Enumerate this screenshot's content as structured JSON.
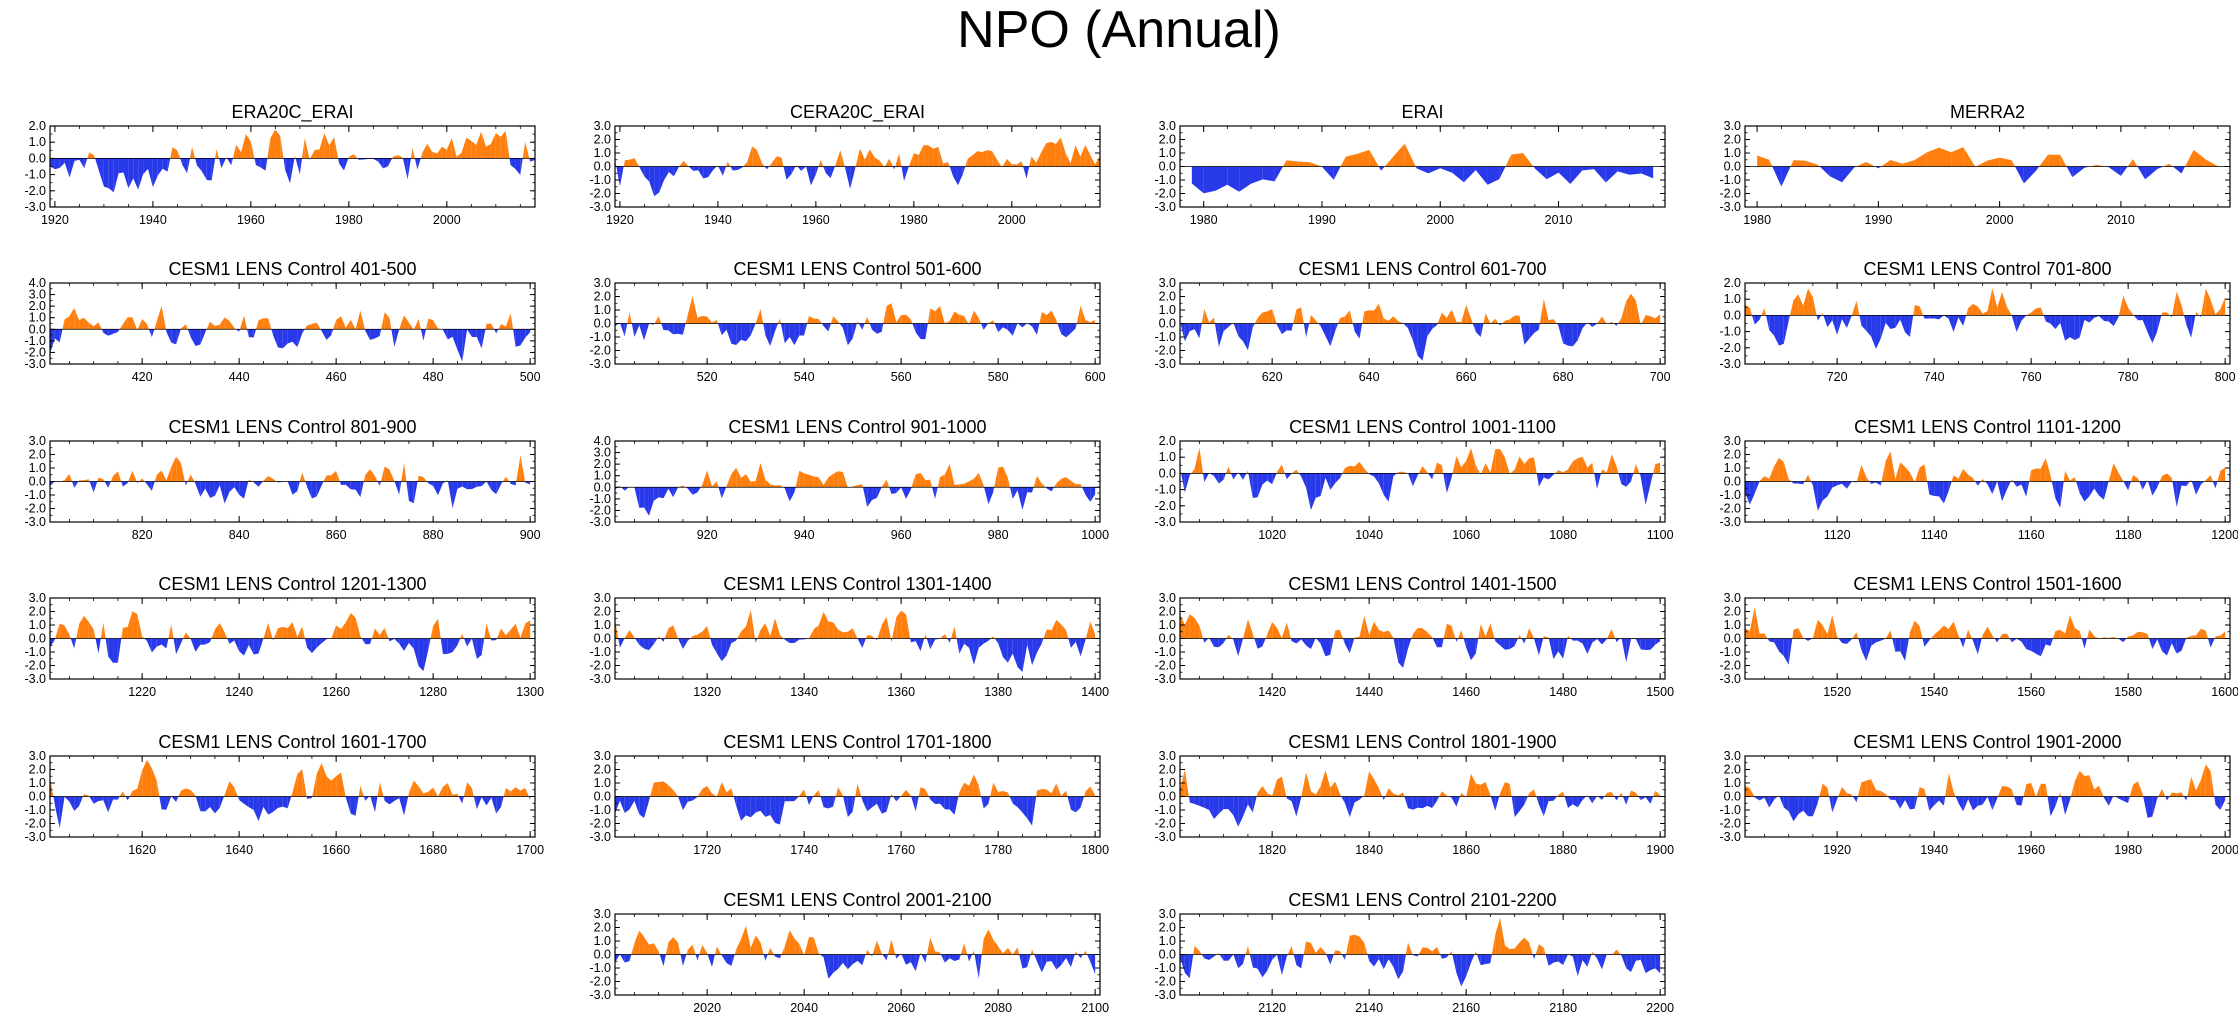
{
  "figure": {
    "title": "NPO (Annual)",
    "colors": {
      "positive": "#ff7f0e",
      "negative": "#2839ea",
      "axis": "#000000"
    }
  },
  "chart_data": [
    {
      "type": "area",
      "title": "ERA20C_ERAI",
      "xlim": [
        1919,
        2018
      ],
      "ylim": [
        -3.0,
        2.0
      ],
      "yticks": [
        2.0,
        1.0,
        0.0,
        -1.0,
        -2.0,
        -3.0
      ],
      "ytick_labels": [
        "2.0",
        "1.0",
        "0.0",
        "-1.0",
        "-2.0",
        "-3.0"
      ],
      "xticks": [
        1920,
        1940,
        1960,
        1980,
        2000
      ],
      "x_start": 1919,
      "x_end": 2018,
      "seed": 11,
      "amp": 1.1,
      "trend": 0.011
    },
    {
      "type": "area",
      "title": "CERA20C_ERAI",
      "xlim": [
        1919,
        2018
      ],
      "ylim": [
        -3.0,
        3.0
      ],
      "yticks": [
        3.0,
        2.0,
        1.0,
        0.0,
        -1.0,
        -2.0,
        -3.0
      ],
      "ytick_labels": [
        "3.0",
        "2.0",
        "1.0",
        "0.0",
        "-1.0",
        "-2.0",
        "-3.0"
      ],
      "xticks": [
        1920,
        1940,
        1960,
        1980,
        2000
      ],
      "x_start": 1919,
      "x_end": 2018,
      "seed": 23,
      "amp": 1.0,
      "trend": 0.009
    },
    {
      "type": "area",
      "title": "ERAI",
      "xlim": [
        1978,
        2019
      ],
      "ylim": [
        -3.0,
        3.0
      ],
      "yticks": [
        3.0,
        2.0,
        1.0,
        0.0,
        -1.0,
        -2.0,
        -3.0
      ],
      "ytick_labels": [
        "3.0",
        "2.0",
        "1.0",
        "0.0",
        "-1.0",
        "-2.0",
        "-3.0"
      ],
      "xticks": [
        1980,
        1990,
        2000,
        2010
      ],
      "x_start": 1979,
      "x_end": 2018,
      "seed": 31,
      "amp": 1.1,
      "trend": 0
    },
    {
      "type": "area",
      "title": "MERRA2",
      "xlim": [
        1979,
        2019
      ],
      "ylim": [
        -3.0,
        3.0
      ],
      "yticks": [
        3.0,
        2.0,
        1.0,
        0.0,
        -1.0,
        -2.0,
        -3.0
      ],
      "ytick_labels": [
        "3.0",
        "2.0",
        "1.0",
        "0.0",
        "-1.0",
        "-2.0",
        "-3.0"
      ],
      "xticks": [
        1980,
        1990,
        2000,
        2010
      ],
      "x_start": 1980,
      "x_end": 2018,
      "seed": 37,
      "amp": 1.1,
      "trend": 0
    },
    {
      "type": "area",
      "title": "CESM1 LENS Control 401-500",
      "xlim": [
        401,
        501
      ],
      "ylim": [
        -3.0,
        4.0
      ],
      "yticks": [
        4.0,
        3.0,
        2.0,
        1.0,
        0.0,
        -1.0,
        -2.0,
        -3.0
      ],
      "ytick_labels": [
        "4.0",
        "3.0",
        "2.0",
        "1.0",
        "0.0",
        "-1.0",
        "-2.0",
        "-3.0"
      ],
      "xticks": [
        420,
        440,
        460,
        480,
        500
      ],
      "x_start": 401,
      "x_end": 500,
      "seed": 41,
      "amp": 1.2,
      "trend": 0
    },
    {
      "type": "area",
      "title": "CESM1 LENS Control 501-600",
      "xlim": [
        501,
        601
      ],
      "ylim": [
        -3.0,
        3.0
      ],
      "yticks": [
        3.0,
        2.0,
        1.0,
        0.0,
        -1.0,
        -2.0,
        -3.0
      ],
      "ytick_labels": [
        "3.0",
        "2.0",
        "1.0",
        "0.0",
        "-1.0",
        "-2.0",
        "-3.0"
      ],
      "xticks": [
        520,
        540,
        560,
        580,
        600
      ],
      "x_start": 501,
      "x_end": 600,
      "seed": 43,
      "amp": 1.1,
      "trend": 0
    },
    {
      "type": "area",
      "title": "CESM1 LENS Control 601-700",
      "xlim": [
        601,
        701
      ],
      "ylim": [
        -3.0,
        3.0
      ],
      "yticks": [
        3.0,
        2.0,
        1.0,
        0.0,
        -1.0,
        -2.0,
        -3.0
      ],
      "ytick_labels": [
        "3.0",
        "2.0",
        "1.0",
        "0.0",
        "-1.0",
        "-2.0",
        "-3.0"
      ],
      "xticks": [
        620,
        640,
        660,
        680,
        700
      ],
      "x_start": 601,
      "x_end": 700,
      "seed": 47,
      "amp": 1.1,
      "trend": 0
    },
    {
      "type": "area",
      "title": "CESM1 LENS Control 701-800",
      "xlim": [
        701,
        801
      ],
      "ylim": [
        -3.0,
        2.0
      ],
      "yticks": [
        2.0,
        1.0,
        0.0,
        -1.0,
        -2.0,
        -3.0
      ],
      "ytick_labels": [
        "2.0",
        "1.0",
        "0.0",
        "-1.0",
        "-2.0",
        "-3.0"
      ],
      "xticks": [
        720,
        740,
        760,
        780,
        800
      ],
      "x_start": 701,
      "x_end": 800,
      "seed": 53,
      "amp": 1.1,
      "trend": 0
    },
    {
      "type": "area",
      "title": "CESM1 LENS Control 801-900",
      "xlim": [
        801,
        901
      ],
      "ylim": [
        -3.0,
        3.0
      ],
      "yticks": [
        3.0,
        2.0,
        1.0,
        0.0,
        -1.0,
        -2.0,
        -3.0
      ],
      "ytick_labels": [
        "3.0",
        "2.0",
        "1.0",
        "0.0",
        "-1.0",
        "-2.0",
        "-3.0"
      ],
      "xticks": [
        820,
        840,
        860,
        880,
        900
      ],
      "x_start": 801,
      "x_end": 900,
      "seed": 59,
      "amp": 1.1,
      "trend": 0
    },
    {
      "type": "area",
      "title": "CESM1 LENS Control 901-1000",
      "xlim": [
        901,
        1001
      ],
      "ylim": [
        -3.0,
        4.0
      ],
      "yticks": [
        4.0,
        3.0,
        2.0,
        1.0,
        0.0,
        -1.0,
        -2.0,
        -3.0
      ],
      "ytick_labels": [
        "4.0",
        "3.0",
        "2.0",
        "1.0",
        "0.0",
        "-1.0",
        "-2.0",
        "-3.0"
      ],
      "xticks": [
        920,
        940,
        960,
        980,
        1000
      ],
      "x_start": 901,
      "x_end": 1000,
      "seed": 61,
      "amp": 1.2,
      "trend": 0
    },
    {
      "type": "area",
      "title": "CESM1 LENS Control 1001-1100",
      "xlim": [
        1001,
        1101
      ],
      "ylim": [
        -3.0,
        2.0
      ],
      "yticks": [
        2.0,
        1.0,
        0.0,
        -1.0,
        -2.0,
        -3.0
      ],
      "ytick_labels": [
        "2.0",
        "1.0",
        "0.0",
        "-1.0",
        "-2.0",
        "-3.0"
      ],
      "xticks": [
        1020,
        1040,
        1060,
        1080,
        1100
      ],
      "x_start": 1001,
      "x_end": 1100,
      "seed": 67,
      "amp": 1.1,
      "trend": 0
    },
    {
      "type": "area",
      "title": "CESM1 LENS Control 1101-1200",
      "xlim": [
        1101,
        1201
      ],
      "ylim": [
        -3.0,
        3.0
      ],
      "yticks": [
        3.0,
        2.0,
        1.0,
        0.0,
        -1.0,
        -2.0,
        -3.0
      ],
      "ytick_labels": [
        "3.0",
        "2.0",
        "1.0",
        "0.0",
        "-1.0",
        "-2.0",
        "-3.0"
      ],
      "xticks": [
        1120,
        1140,
        1160,
        1180,
        1200
      ],
      "x_start": 1101,
      "x_end": 1200,
      "seed": 71,
      "amp": 1.1,
      "trend": 0
    },
    {
      "type": "area",
      "title": "CESM1 LENS Control 1201-1300",
      "xlim": [
        1201,
        1301
      ],
      "ylim": [
        -3.0,
        3.0
      ],
      "yticks": [
        3.0,
        2.0,
        1.0,
        0.0,
        -1.0,
        -2.0,
        -3.0
      ],
      "ytick_labels": [
        "3.0",
        "2.0",
        "1.0",
        "0.0",
        "-1.0",
        "-2.0",
        "-3.0"
      ],
      "xticks": [
        1220,
        1240,
        1260,
        1280,
        1300
      ],
      "x_start": 1201,
      "x_end": 1300,
      "seed": 73,
      "amp": 1.1,
      "trend": 0
    },
    {
      "type": "area",
      "title": "CESM1 LENS Control 1301-1400",
      "xlim": [
        1301,
        1401
      ],
      "ylim": [
        -3.0,
        3.0
      ],
      "yticks": [
        3.0,
        2.0,
        1.0,
        0.0,
        -1.0,
        -2.0,
        -3.0
      ],
      "ytick_labels": [
        "3.0",
        "2.0",
        "1.0",
        "0.0",
        "-1.0",
        "-2.0",
        "-3.0"
      ],
      "xticks": [
        1320,
        1340,
        1360,
        1380,
        1400
      ],
      "x_start": 1301,
      "x_end": 1400,
      "seed": 79,
      "amp": 1.1,
      "trend": 0
    },
    {
      "type": "area",
      "title": "CESM1 LENS Control 1401-1500",
      "xlim": [
        1401,
        1501
      ],
      "ylim": [
        -3.0,
        3.0
      ],
      "yticks": [
        3.0,
        2.0,
        1.0,
        0.0,
        -1.0,
        -2.0,
        -3.0
      ],
      "ytick_labels": [
        "3.0",
        "2.0",
        "1.0",
        "0.0",
        "-1.0",
        "-2.0",
        "-3.0"
      ],
      "xticks": [
        1420,
        1440,
        1460,
        1480,
        1500
      ],
      "x_start": 1401,
      "x_end": 1500,
      "seed": 83,
      "amp": 1.1,
      "trend": 0
    },
    {
      "type": "area",
      "title": "CESM1 LENS Control 1501-1600",
      "xlim": [
        1501,
        1601
      ],
      "ylim": [
        -3.0,
        3.0
      ],
      "yticks": [
        3.0,
        2.0,
        1.0,
        0.0,
        -1.0,
        -2.0,
        -3.0
      ],
      "ytick_labels": [
        "3.0",
        "2.0",
        "1.0",
        "0.0",
        "-1.0",
        "-2.0",
        "-3.0"
      ],
      "xticks": [
        1520,
        1540,
        1560,
        1580,
        1600
      ],
      "x_start": 1501,
      "x_end": 1600,
      "seed": 89,
      "amp": 1.1,
      "trend": 0
    },
    {
      "type": "area",
      "title": "CESM1 LENS Control 1601-1700",
      "xlim": [
        1601,
        1701
      ],
      "ylim": [
        -3.0,
        3.0
      ],
      "yticks": [
        3.0,
        2.0,
        1.0,
        0.0,
        -1.0,
        -2.0,
        -3.0
      ],
      "ytick_labels": [
        "3.0",
        "2.0",
        "1.0",
        "0.0",
        "-1.0",
        "-2.0",
        "-3.0"
      ],
      "xticks": [
        1620,
        1640,
        1660,
        1680,
        1700
      ],
      "x_start": 1601,
      "x_end": 1700,
      "seed": 97,
      "amp": 1.1,
      "trend": 0
    },
    {
      "type": "area",
      "title": "CESM1 LENS Control 1701-1800",
      "xlim": [
        1701,
        1801
      ],
      "ylim": [
        -3.0,
        3.0
      ],
      "yticks": [
        3.0,
        2.0,
        1.0,
        0.0,
        -1.0,
        -2.0,
        -3.0
      ],
      "ytick_labels": [
        "3.0",
        "2.0",
        "1.0",
        "0.0",
        "-1.0",
        "-2.0",
        "-3.0"
      ],
      "xticks": [
        1720,
        1740,
        1760,
        1780,
        1800
      ],
      "x_start": 1701,
      "x_end": 1800,
      "seed": 101,
      "amp": 1.1,
      "trend": 0
    },
    {
      "type": "area",
      "title": "CESM1 LENS Control 1801-1900",
      "xlim": [
        1801,
        1901
      ],
      "ylim": [
        -3.0,
        3.0
      ],
      "yticks": [
        3.0,
        2.0,
        1.0,
        0.0,
        -1.0,
        -2.0,
        -3.0
      ],
      "ytick_labels": [
        "3.0",
        "2.0",
        "1.0",
        "0.0",
        "-1.0",
        "-2.0",
        "-3.0"
      ],
      "xticks": [
        1820,
        1840,
        1860,
        1880,
        1900
      ],
      "x_start": 1801,
      "x_end": 1900,
      "seed": 103,
      "amp": 1.1,
      "trend": 0
    },
    {
      "type": "area",
      "title": "CESM1 LENS Control 1901-2000",
      "xlim": [
        1901,
        2001
      ],
      "ylim": [
        -3.0,
        3.0
      ],
      "yticks": [
        3.0,
        2.0,
        1.0,
        0.0,
        -1.0,
        -2.0,
        -3.0
      ],
      "ytick_labels": [
        "3.0",
        "2.0",
        "1.0",
        "0.0",
        "-1.0",
        "-2.0",
        "-3.0"
      ],
      "xticks": [
        1920,
        1940,
        1960,
        1980,
        2000
      ],
      "x_start": 1901,
      "x_end": 2000,
      "seed": 107,
      "amp": 1.1,
      "trend": 0
    },
    {
      "type": "area",
      "title": "CESM1 LENS Control 2001-2100",
      "xlim": [
        2001,
        2101
      ],
      "ylim": [
        -3.0,
        3.0
      ],
      "yticks": [
        3.0,
        2.0,
        1.0,
        0.0,
        -1.0,
        -2.0,
        -3.0
      ],
      "ytick_labels": [
        "3.0",
        "2.0",
        "1.0",
        "0.0",
        "-1.0",
        "-2.0",
        "-3.0"
      ],
      "xticks": [
        2020,
        2040,
        2060,
        2080,
        2100
      ],
      "x_start": 2001,
      "x_end": 2100,
      "seed": 109,
      "amp": 1.1,
      "trend": 0
    },
    {
      "type": "area",
      "title": "CESM1 LENS Control 2101-2200",
      "xlim": [
        2101,
        2201
      ],
      "ylim": [
        -3.0,
        3.0
      ],
      "yticks": [
        3.0,
        2.0,
        1.0,
        0.0,
        -1.0,
        -2.0,
        -3.0
      ],
      "ytick_labels": [
        "3.0",
        "2.0",
        "1.0",
        "0.0",
        "-1.0",
        "-2.0",
        "-3.0"
      ],
      "xticks": [
        2120,
        2140,
        2160,
        2180,
        2200
      ],
      "x_start": 2101,
      "x_end": 2200,
      "seed": 113,
      "amp": 1.1,
      "trend": 0
    }
  ]
}
